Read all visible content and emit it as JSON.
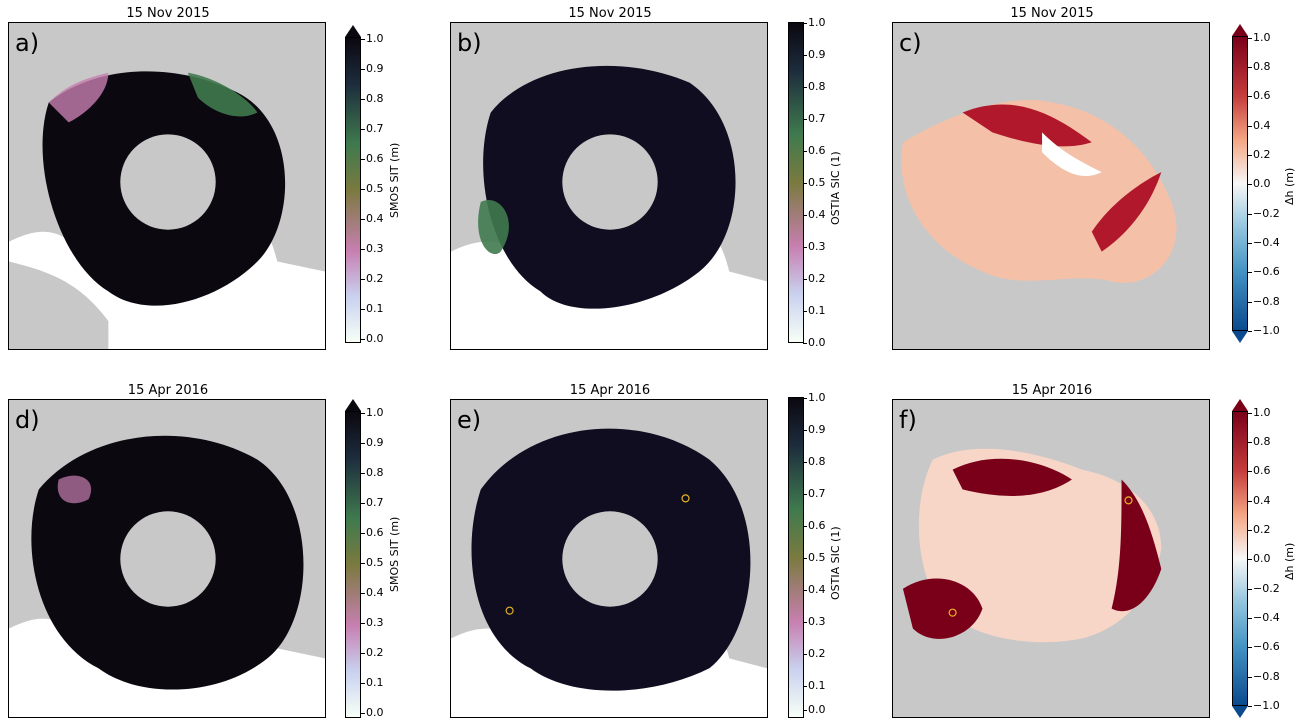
{
  "panels": [
    {
      "label": "a)",
      "title": "15 Nov 2015",
      "cbar_label": "SMOS SIT (m)",
      "type": "smos"
    },
    {
      "label": "b)",
      "title": "15 Nov 2015",
      "cbar_label": "OSTIA SIC (1)",
      "type": "ostia"
    },
    {
      "label": "c)",
      "title": "15 Nov 2015",
      "cbar_label": "Δh (m)",
      "type": "diff"
    },
    {
      "label": "d)",
      "title": "15 Apr 2016",
      "cbar_label": "SMOS SIT (m)",
      "type": "smos"
    },
    {
      "label": "e)",
      "title": "15 Apr 2016",
      "cbar_label": "OSTIA SIC (1)",
      "type": "ostia"
    },
    {
      "label": "f)",
      "title": "15 Apr 2016",
      "cbar_label": "Δh (m)",
      "type": "diff"
    }
  ],
  "ticks_01": [
    "1.0",
    "0.9",
    "0.8",
    "0.7",
    "0.6",
    "0.5",
    "0.4",
    "0.3",
    "0.2",
    "0.1",
    "0.0"
  ],
  "ticks_diff": [
    "1.0",
    "0.8",
    "0.6",
    "0.4",
    "0.2",
    "0.0",
    "−0.2",
    "−0.4",
    "−0.6",
    "−0.8",
    "−1.0"
  ],
  "colors": {
    "land": "#c8c8c8",
    "ice_thick": "#0b0810",
    "ocean_open": "#ffffff",
    "smos_mid": "#3f7a4e",
    "smos_pink": "#c77fb0",
    "diff_pos": "#7a0019",
    "diff_neg": "#0b4a8f"
  }
}
